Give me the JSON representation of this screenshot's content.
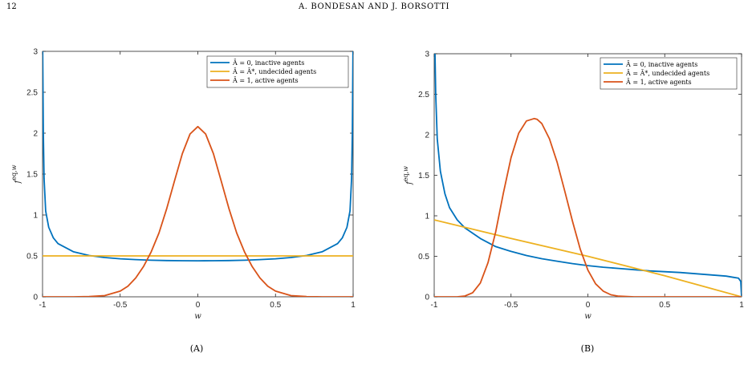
{
  "page": {
    "page_number": "12",
    "running_head": "A. BONDESAN AND J. BORSOTTI"
  },
  "colors": {
    "blue": "#0072BD",
    "yellow": "#EDB120",
    "orange": "#D95319"
  },
  "chart_data": [
    {
      "type": "line",
      "caption": "(A)",
      "xlabel": "w",
      "ylabel": "f^{eq,w}",
      "xlim": [
        -1,
        1
      ],
      "ylim": [
        0,
        3
      ],
      "xticks": [
        "-1",
        "-0.5",
        "0",
        "0.5",
        "1"
      ],
      "yticks": [
        "0",
        "0.5",
        "1",
        "1.5",
        "2",
        "2.5",
        "3"
      ],
      "legend_position": "top-right",
      "series": [
        {
          "name": "Ā = 0, inactive agents",
          "color": "#0072BD",
          "x": [
            -0.999,
            -0.995,
            -0.99,
            -0.98,
            -0.96,
            -0.93,
            -0.9,
            -0.8,
            -0.7,
            -0.6,
            -0.5,
            -0.4,
            -0.3,
            -0.2,
            -0.1,
            0,
            0.1,
            0.2,
            0.3,
            0.4,
            0.5,
            0.6,
            0.7,
            0.8,
            0.9,
            0.93,
            0.96,
            0.98,
            0.99,
            0.995,
            0.999
          ],
          "y": [
            3.0,
            2.0,
            1.45,
            1.05,
            0.85,
            0.72,
            0.65,
            0.55,
            0.505,
            0.48,
            0.465,
            0.455,
            0.447,
            0.443,
            0.441,
            0.44,
            0.441,
            0.443,
            0.447,
            0.455,
            0.465,
            0.48,
            0.505,
            0.55,
            0.65,
            0.72,
            0.85,
            1.05,
            1.45,
            2.0,
            3.0
          ]
        },
        {
          "name": "Ā = Ā*, undecided agents",
          "color": "#EDB120",
          "x": [
            -1,
            1
          ],
          "y": [
            0.5,
            0.5
          ]
        },
        {
          "name": "Ā = 1, active agents",
          "color": "#D95319",
          "x": [
            -1,
            -0.8,
            -0.7,
            -0.6,
            -0.5,
            -0.45,
            -0.4,
            -0.35,
            -0.3,
            -0.25,
            -0.2,
            -0.15,
            -0.1,
            -0.05,
            0,
            0.05,
            0.1,
            0.15,
            0.2,
            0.25,
            0.3,
            0.35,
            0.4,
            0.45,
            0.5,
            0.6,
            0.7,
            0.8,
            1
          ],
          "y": [
            0,
            0,
            0.003,
            0.015,
            0.07,
            0.13,
            0.23,
            0.37,
            0.55,
            0.78,
            1.08,
            1.42,
            1.75,
            1.99,
            2.08,
            1.99,
            1.75,
            1.42,
            1.08,
            0.78,
            0.55,
            0.37,
            0.23,
            0.13,
            0.07,
            0.015,
            0.003,
            0,
            0
          ]
        }
      ]
    },
    {
      "type": "line",
      "caption": "(B)",
      "xlabel": "w",
      "ylabel": "f^{eq,w}",
      "xlim": [
        -1,
        1
      ],
      "ylim": [
        0,
        3
      ],
      "xticks": [
        "-1",
        "-0.5",
        "0",
        "0.5",
        "1"
      ],
      "yticks": [
        "0",
        "0.5",
        "1",
        "1.5",
        "2",
        "2.5",
        "3"
      ],
      "legend_position": "top-right",
      "series": [
        {
          "name": "Ā = 0, inactive agents",
          "color": "#0072BD",
          "x": [
            -0.995,
            -0.99,
            -0.98,
            -0.96,
            -0.93,
            -0.9,
            -0.85,
            -0.8,
            -0.7,
            -0.6,
            -0.5,
            -0.4,
            -0.3,
            -0.2,
            -0.1,
            0,
            0.1,
            0.2,
            0.3,
            0.4,
            0.5,
            0.6,
            0.7,
            0.8,
            0.9,
            0.95,
            0.98,
            0.995,
            1.0
          ],
          "y": [
            3.0,
            2.5,
            1.95,
            1.55,
            1.27,
            1.1,
            0.95,
            0.85,
            0.72,
            0.62,
            0.56,
            0.51,
            0.47,
            0.44,
            0.41,
            0.385,
            0.365,
            0.35,
            0.335,
            0.32,
            0.31,
            0.3,
            0.285,
            0.27,
            0.255,
            0.24,
            0.23,
            0.19,
            0.0
          ]
        },
        {
          "name": "Ā = Ā*, undecided agents",
          "color": "#EDB120",
          "x": [
            -1,
            -0.5,
            0,
            0.5,
            1
          ],
          "y": [
            0.95,
            0.72,
            0.5,
            0.26,
            0.0
          ]
        },
        {
          "name": "Ā = 1, active agents",
          "color": "#D95319",
          "x": [
            -1,
            -0.85,
            -0.8,
            -0.75,
            -0.7,
            -0.65,
            -0.6,
            -0.55,
            -0.5,
            -0.45,
            -0.4,
            -0.35,
            -0.33,
            -0.3,
            -0.25,
            -0.2,
            -0.15,
            -0.1,
            -0.05,
            0,
            0.05,
            0.1,
            0.15,
            0.2,
            0.3,
            0.4,
            1
          ],
          "y": [
            0,
            0,
            0.01,
            0.05,
            0.17,
            0.42,
            0.8,
            1.28,
            1.72,
            2.02,
            2.17,
            2.2,
            2.19,
            2.14,
            1.95,
            1.66,
            1.3,
            0.93,
            0.59,
            0.33,
            0.16,
            0.07,
            0.025,
            0.008,
            0,
            0,
            0
          ]
        }
      ]
    }
  ]
}
